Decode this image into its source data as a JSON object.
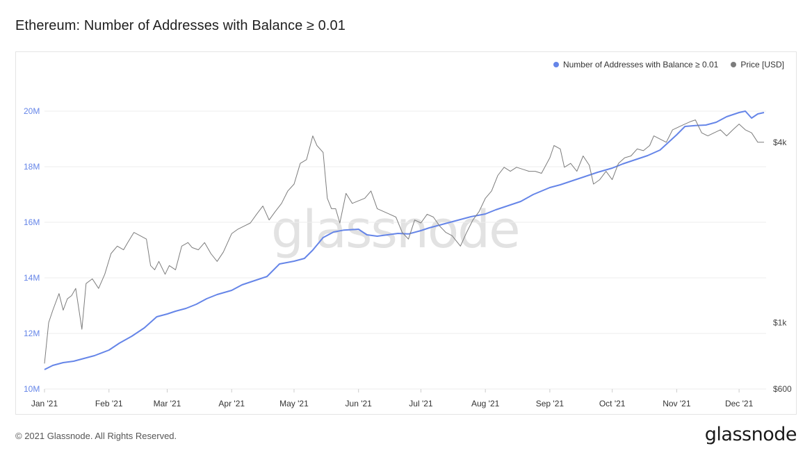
{
  "chart_data": {
    "type": "line",
    "title": "Ethereum: Number of Addresses with Balance ≥ 0.01",
    "x_ticks": [
      "Jan '21",
      "Feb '21",
      "Mar '21",
      "Apr '21",
      "May '21",
      "Jun '21",
      "Jul '21",
      "Aug '21",
      "Sep '21",
      "Oct '21",
      "Nov '21",
      "Dec '21"
    ],
    "y_left": {
      "ticks": [
        "10M",
        "12M",
        "14M",
        "16M",
        "18M",
        "20M"
      ],
      "ylim": [
        10,
        21.5
      ],
      "unit": "M"
    },
    "y_right": {
      "ticks": [
        "$600",
        "$1k",
        "$4k"
      ],
      "scale": "log",
      "ylim": [
        600,
        7000
      ]
    },
    "grid": true,
    "legend_position": "top-right",
    "series": [
      {
        "name": "Number of Addresses with Balance ≥ 0.01",
        "axis": "left",
        "color": "#6585e8",
        "x": [
          "2021-01-01",
          "2021-01-05",
          "2021-01-10",
          "2021-01-15",
          "2021-01-20",
          "2021-01-25",
          "2021-02-01",
          "2021-02-06",
          "2021-02-12",
          "2021-02-18",
          "2021-02-24",
          "2021-03-01",
          "2021-03-05",
          "2021-03-10",
          "2021-03-15",
          "2021-03-20",
          "2021-03-25",
          "2021-04-01",
          "2021-04-06",
          "2021-04-12",
          "2021-04-18",
          "2021-04-24",
          "2021-05-01",
          "2021-05-06",
          "2021-05-10",
          "2021-05-15",
          "2021-05-20",
          "2021-05-25",
          "2021-06-01",
          "2021-06-05",
          "2021-06-10",
          "2021-06-15",
          "2021-06-20",
          "2021-06-25",
          "2021-07-01",
          "2021-07-05",
          "2021-07-10",
          "2021-07-15",
          "2021-07-20",
          "2021-07-25",
          "2021-08-01",
          "2021-08-06",
          "2021-08-12",
          "2021-08-18",
          "2021-08-24",
          "2021-09-01",
          "2021-09-06",
          "2021-09-12",
          "2021-09-18",
          "2021-09-24",
          "2021-10-01",
          "2021-10-06",
          "2021-10-12",
          "2021-10-18",
          "2021-10-24",
          "2021-11-01",
          "2021-11-05",
          "2021-11-10",
          "2021-11-15",
          "2021-11-20",
          "2021-11-25",
          "2021-12-01",
          "2021-12-04",
          "2021-12-07",
          "2021-12-10",
          "2021-12-13"
        ],
        "values": [
          10.7,
          10.85,
          10.95,
          11.0,
          11.1,
          11.2,
          11.4,
          11.65,
          11.9,
          12.2,
          12.6,
          12.7,
          12.8,
          12.9,
          13.05,
          13.25,
          13.4,
          13.55,
          13.75,
          13.9,
          14.05,
          14.5,
          14.6,
          14.7,
          15.0,
          15.45,
          15.65,
          15.72,
          15.75,
          15.55,
          15.5,
          15.55,
          15.6,
          15.58,
          15.7,
          15.8,
          15.9,
          16.0,
          16.1,
          16.2,
          16.3,
          16.45,
          16.6,
          16.75,
          17.0,
          17.25,
          17.35,
          17.5,
          17.65,
          17.8,
          17.95,
          18.1,
          18.25,
          18.4,
          18.6,
          19.15,
          19.45,
          19.48,
          19.5,
          19.6,
          19.8,
          19.95,
          20.0,
          19.75,
          19.9,
          19.95
        ]
      },
      {
        "name": "Price [USD]",
        "axis": "right",
        "color": "#7c7c7c",
        "x": [
          "2021-01-01",
          "2021-01-03",
          "2021-01-05",
          "2021-01-08",
          "2021-01-10",
          "2021-01-12",
          "2021-01-14",
          "2021-01-16",
          "2021-01-19",
          "2021-01-21",
          "2021-01-24",
          "2021-01-27",
          "2021-01-30",
          "2021-02-02",
          "2021-02-05",
          "2021-02-08",
          "2021-02-10",
          "2021-02-13",
          "2021-02-16",
          "2021-02-19",
          "2021-02-21",
          "2021-02-23",
          "2021-02-25",
          "2021-02-28",
          "2021-03-02",
          "2021-03-05",
          "2021-03-08",
          "2021-03-11",
          "2021-03-13",
          "2021-03-16",
          "2021-03-19",
          "2021-03-22",
          "2021-03-25",
          "2021-03-28",
          "2021-04-01",
          "2021-04-04",
          "2021-04-07",
          "2021-04-10",
          "2021-04-13",
          "2021-04-16",
          "2021-04-19",
          "2021-04-22",
          "2021-04-25",
          "2021-04-28",
          "2021-05-01",
          "2021-05-04",
          "2021-05-07",
          "2021-05-10",
          "2021-05-12",
          "2021-05-15",
          "2021-05-17",
          "2021-05-19",
          "2021-05-21",
          "2021-05-23",
          "2021-05-26",
          "2021-05-29",
          "2021-06-01",
          "2021-06-04",
          "2021-06-07",
          "2021-06-10",
          "2021-06-13",
          "2021-06-16",
          "2021-06-19",
          "2021-06-22",
          "2021-06-25",
          "2021-06-28",
          "2021-07-01",
          "2021-07-04",
          "2021-07-07",
          "2021-07-10",
          "2021-07-13",
          "2021-07-16",
          "2021-07-20",
          "2021-07-23",
          "2021-07-26",
          "2021-07-29",
          "2021-08-01",
          "2021-08-04",
          "2021-08-07",
          "2021-08-10",
          "2021-08-13",
          "2021-08-16",
          "2021-08-19",
          "2021-08-22",
          "2021-08-25",
          "2021-08-28",
          "2021-09-01",
          "2021-09-03",
          "2021-09-06",
          "2021-09-08",
          "2021-09-11",
          "2021-09-14",
          "2021-09-17",
          "2021-09-20",
          "2021-09-22",
          "2021-09-25",
          "2021-09-28",
          "2021-10-01",
          "2021-10-04",
          "2021-10-07",
          "2021-10-10",
          "2021-10-13",
          "2021-10-16",
          "2021-10-19",
          "2021-10-21",
          "2021-10-24",
          "2021-10-27",
          "2021-10-30",
          "2021-11-02",
          "2021-11-05",
          "2021-11-08",
          "2021-11-10",
          "2021-11-13",
          "2021-11-16",
          "2021-11-19",
          "2021-11-22",
          "2021-11-25",
          "2021-11-28",
          "2021-12-01",
          "2021-12-04",
          "2021-12-07",
          "2021-12-10",
          "2021-12-13"
        ],
        "values": [
          730,
          1000,
          1100,
          1250,
          1100,
          1200,
          1230,
          1300,
          950,
          1350,
          1400,
          1300,
          1450,
          1700,
          1800,
          1750,
          1850,
          2000,
          1950,
          1900,
          1550,
          1500,
          1600,
          1450,
          1550,
          1500,
          1800,
          1850,
          1780,
          1750,
          1850,
          1700,
          1600,
          1720,
          1980,
          2050,
          2100,
          2150,
          2300,
          2450,
          2200,
          2350,
          2500,
          2750,
          2900,
          3400,
          3500,
          4200,
          3900,
          3700,
          2600,
          2400,
          2400,
          2150,
          2700,
          2500,
          2550,
          2600,
          2750,
          2400,
          2350,
          2300,
          2250,
          2000,
          1900,
          2200,
          2150,
          2300,
          2250,
          2100,
          2000,
          1950,
          1800,
          2000,
          2200,
          2350,
          2600,
          2750,
          3100,
          3300,
          3200,
          3300,
          3250,
          3200,
          3200,
          3150,
          3550,
          3900,
          3800,
          3300,
          3400,
          3200,
          3600,
          3350,
          2900,
          3000,
          3200,
          3000,
          3400,
          3550,
          3600,
          3800,
          3750,
          3900,
          4200,
          4100,
          4000,
          4400,
          4500,
          4600,
          4700,
          4750,
          4300,
          4200,
          4300,
          4400,
          4200,
          4400,
          4600,
          4400,
          4300,
          4000,
          4000
        ]
      }
    ]
  },
  "footer": {
    "copyright": "© 2021 Glassnode. All Rights Reserved.",
    "logo": "glassnode"
  },
  "watermark": "glassnode"
}
